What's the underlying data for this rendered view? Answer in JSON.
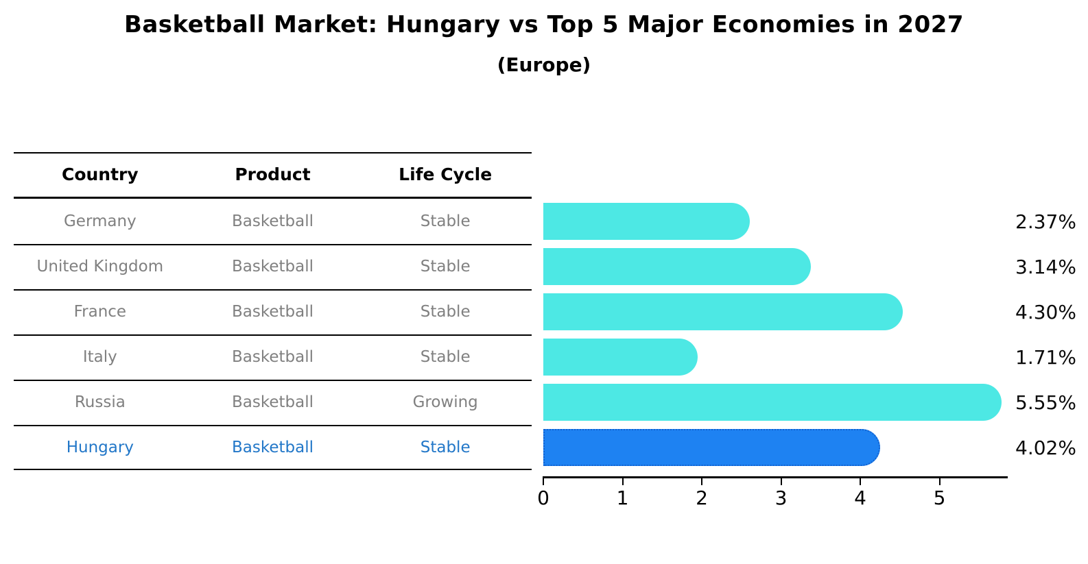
{
  "title": "Basketball Market: Hungary vs Top 5 Major Economies in 2027",
  "subtitle": "(Europe)",
  "table": {
    "headers": [
      "Country",
      "Product",
      "Life Cycle"
    ],
    "rows": [
      {
        "country": "Germany",
        "product": "Basketball",
        "life_cycle": "Stable",
        "highlight": false
      },
      {
        "country": "United Kingdom",
        "product": "Basketball",
        "life_cycle": "Stable",
        "highlight": false
      },
      {
        "country": "France",
        "product": "Basketball",
        "life_cycle": "Stable",
        "highlight": false
      },
      {
        "country": "Italy",
        "product": "Basketball",
        "life_cycle": "Stable",
        "highlight": false
      },
      {
        "country": "Russia",
        "product": "Basketball",
        "life_cycle": "Growing",
        "highlight": false
      },
      {
        "country": "Hungary",
        "product": "Basketball",
        "life_cycle": "Stable",
        "highlight": true
      }
    ]
  },
  "chart_data": {
    "type": "bar",
    "orientation": "horizontal",
    "title": "Basketball Market: Hungary vs Top 5 Major Economies in 2027",
    "subtitle": "(Europe)",
    "categories": [
      "Germany",
      "United Kingdom",
      "France",
      "Italy",
      "Russia",
      "Hungary"
    ],
    "values": [
      2.37,
      3.14,
      4.3,
      1.71,
      5.55,
      4.02
    ],
    "value_labels": [
      "2.37%",
      "3.14%",
      "4.30%",
      "1.71%",
      "5.55%",
      "4.02%"
    ],
    "highlight_index": 5,
    "xlabel": "",
    "ylabel": "",
    "xlim": [
      0,
      5.9
    ],
    "x_ticks": [
      0,
      1,
      2,
      3,
      4,
      5
    ],
    "grid": false,
    "legend": "none",
    "bar_color": "#4de8e4",
    "highlight_bar_color": "#1e82f2",
    "highlight_text_color": "#2277c8",
    "text_color": "#808080"
  },
  "colors": {
    "bar_cyan": "#4de8e4",
    "bar_blue": "#1e82f2",
    "hungary_text_blue": "#2277c8",
    "table_text_gray": "#808080",
    "line_black": "#000000"
  }
}
